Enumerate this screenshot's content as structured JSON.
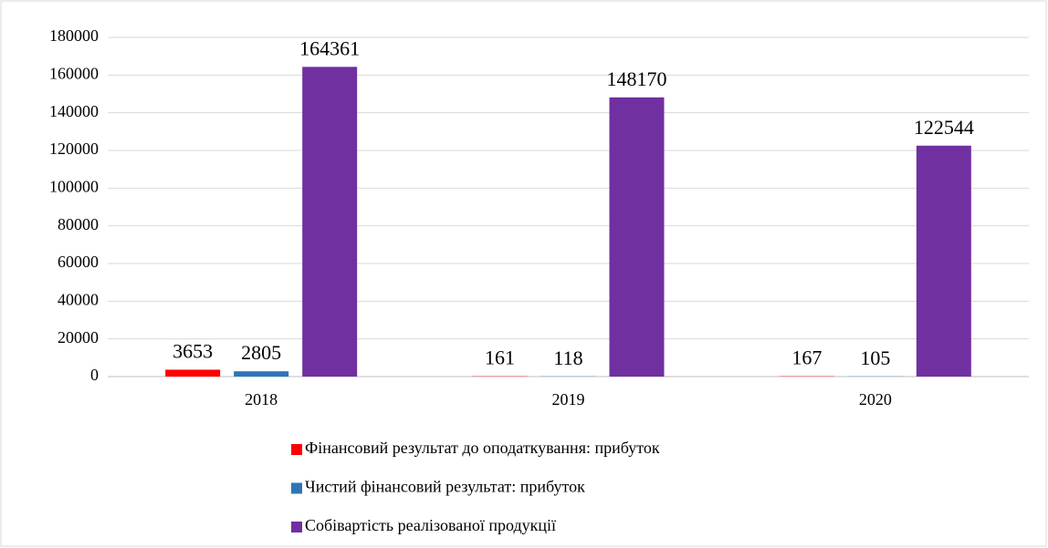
{
  "chart_data": {
    "type": "bar",
    "categories": [
      "2018",
      "2019",
      "2020"
    ],
    "series": [
      {
        "name": "Фінансовий результат до оподаткування: прибуток",
        "color": "#ff0000",
        "values": [
          3653,
          161,
          167
        ]
      },
      {
        "name": "Чистий фінансовий результат: прибуток",
        "color": "#2e75b6",
        "values": [
          2805,
          118,
          105
        ]
      },
      {
        "name": "Собівартість реалізованої продукції",
        "color": "#7030a0",
        "values": [
          164361,
          148170,
          122544
        ]
      }
    ],
    "ylim": [
      0,
      180000
    ],
    "yticks": [
      0,
      20000,
      40000,
      60000,
      80000,
      100000,
      120000,
      140000,
      160000,
      180000
    ],
    "grid": true,
    "legend": "bottom"
  }
}
